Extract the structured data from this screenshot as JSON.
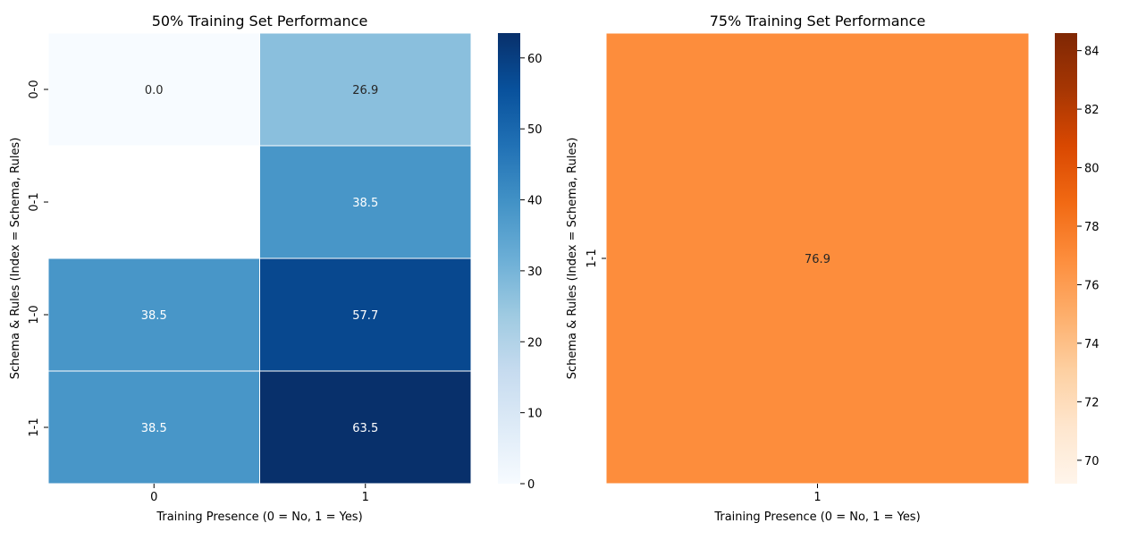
{
  "chart_data": [
    {
      "type": "heatmap",
      "title": "50% Training Set Performance",
      "xlabel": "Training Presence (0 = No, 1 = Yes)",
      "ylabel": "Schema & Rules (Index = Schema, Rules)",
      "x_categories": [
        "0",
        "1"
      ],
      "y_categories": [
        "0-0",
        "0-1",
        "1-0",
        "1-1"
      ],
      "values": [
        [
          0.0,
          26.9
        ],
        [
          null,
          38.5
        ],
        [
          38.5,
          57.7
        ],
        [
          38.5,
          63.5
        ]
      ],
      "cell_labels": [
        [
          "0.0",
          "26.9"
        ],
        [
          "",
          "38.5"
        ],
        [
          "38.5",
          "57.7"
        ],
        [
          "38.5",
          "63.5"
        ]
      ],
      "colormap": "Blues",
      "colorbar": {
        "min": 0,
        "max": 63.5,
        "ticks": [
          0,
          10,
          20,
          30,
          40,
          50,
          60
        ]
      }
    },
    {
      "type": "heatmap",
      "title": "75% Training Set Performance",
      "xlabel": "Training Presence (0 = No, 1 = Yes)",
      "ylabel": "Schema & Rules (Index = Schema, Rules)",
      "x_categories": [
        "1"
      ],
      "y_categories": [
        "1-1"
      ],
      "values": [
        [
          76.9
        ]
      ],
      "cell_labels": [
        [
          "76.9"
        ]
      ],
      "colormap": "Oranges",
      "colorbar": {
        "min": 69.2,
        "max": 84.6,
        "ticks": [
          70,
          72,
          74,
          76,
          78,
          80,
          82,
          84
        ]
      }
    }
  ]
}
